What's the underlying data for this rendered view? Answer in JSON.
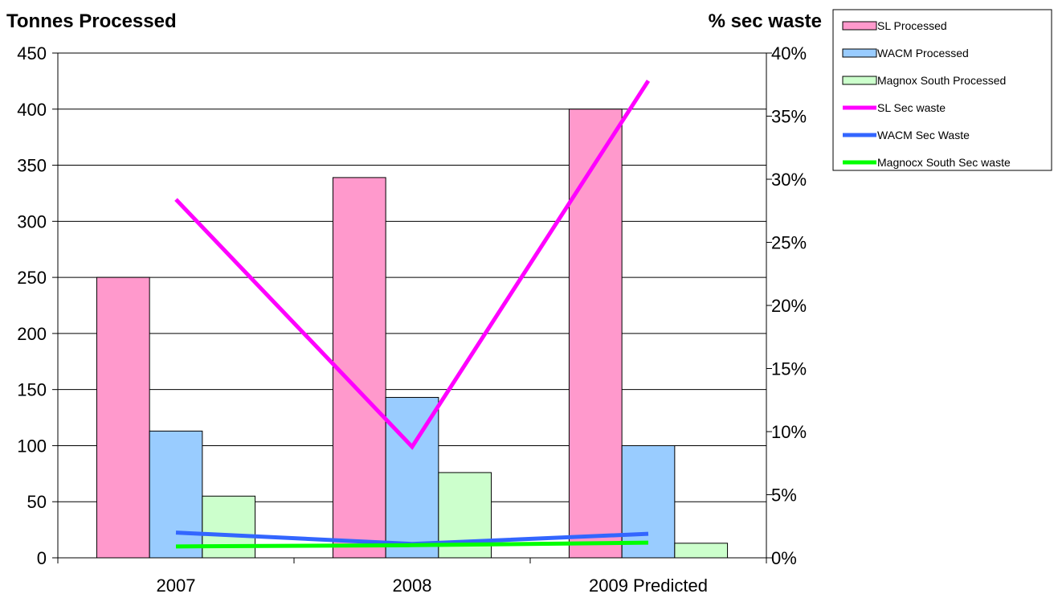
{
  "chart_data": {
    "type": "bar",
    "categories": [
      "2007",
      "2008",
      "2009 Predicted"
    ],
    "y_left": {
      "title": "Tonnes Processed",
      "min": 0,
      "max": 450,
      "step": 50
    },
    "y_right": {
      "title": "% sec waste",
      "min": 0,
      "max": 0.4,
      "step": 0.05,
      "tick_labels": [
        "0%",
        "5%",
        "10%",
        "15%",
        "20%",
        "25%",
        "30%",
        "35%",
        "40%"
      ]
    },
    "grid": true,
    "legend_position": "top-right",
    "bar_series": [
      {
        "name": "SL Processed",
        "values": [
          250,
          339,
          400
        ],
        "color": "#FF99CC"
      },
      {
        "name": "WACM Processed",
        "values": [
          113,
          143,
          100
        ],
        "color": "#99CCFF"
      },
      {
        "name": "Magnox South Processed",
        "values": [
          55,
          76,
          13
        ],
        "color": "#CCFFCC"
      }
    ],
    "line_series": [
      {
        "name": "SL Sec waste",
        "values": [
          0.284,
          0.088,
          0.378
        ],
        "color": "#FF00FF"
      },
      {
        "name": "WACM Sec Waste",
        "values": [
          0.02,
          0.011,
          0.019
        ],
        "color": "#3366FF"
      },
      {
        "name": "Magnocx South Sec waste",
        "values": [
          0.009,
          0.01,
          0.012
        ],
        "color": "#00FF00"
      }
    ]
  }
}
